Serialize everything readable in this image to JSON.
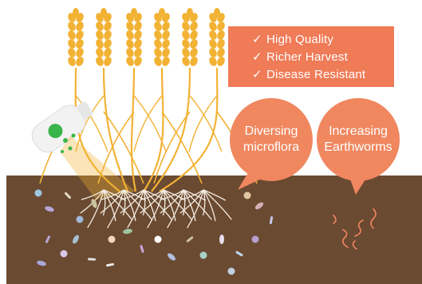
{
  "benefits": {
    "items": [
      {
        "label": "High Quality",
        "icon": "check-icon"
      },
      {
        "label": "Richer Harvest",
        "icon": "check-icon"
      },
      {
        "label": "Disease Resistant",
        "icon": "check-icon"
      }
    ],
    "check_glyph": "✓"
  },
  "bubbles": {
    "microflora": {
      "line1": "Diversing",
      "line2": "microflora"
    },
    "earthworms": {
      "line1": "Increasing",
      "line2": "Earthworms"
    }
  },
  "colors": {
    "soil": "#6b4a32",
    "wheat": "#f2b234",
    "callout": "#ef7b57",
    "bubble": "#f0875f",
    "roots": "#f4ece0"
  }
}
